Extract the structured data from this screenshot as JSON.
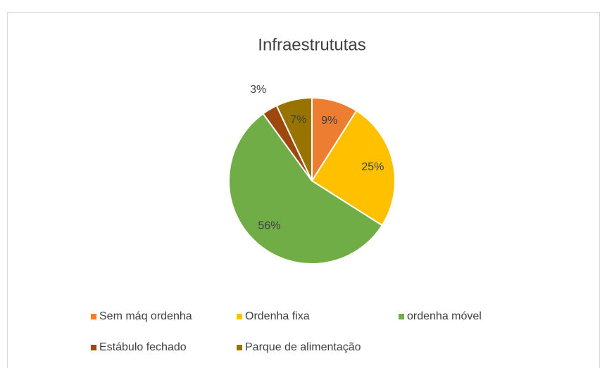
{
  "chart_data": {
    "type": "pie",
    "title": "Infraestrututas",
    "categories": [
      "Sem máq ordenha",
      "Ordenha fixa",
      "ordenha móvel",
      "Estábulo fechado",
      "Parque de alimentação"
    ],
    "values": [
      9,
      25,
      56,
      3,
      7
    ],
    "value_labels": [
      "9%",
      "25%",
      "56%",
      "3%",
      "7%"
    ],
    "colors": [
      "#ed7d31",
      "#ffc000",
      "#70ad47",
      "#9e480e",
      "#997300"
    ],
    "legend": "bottom"
  }
}
